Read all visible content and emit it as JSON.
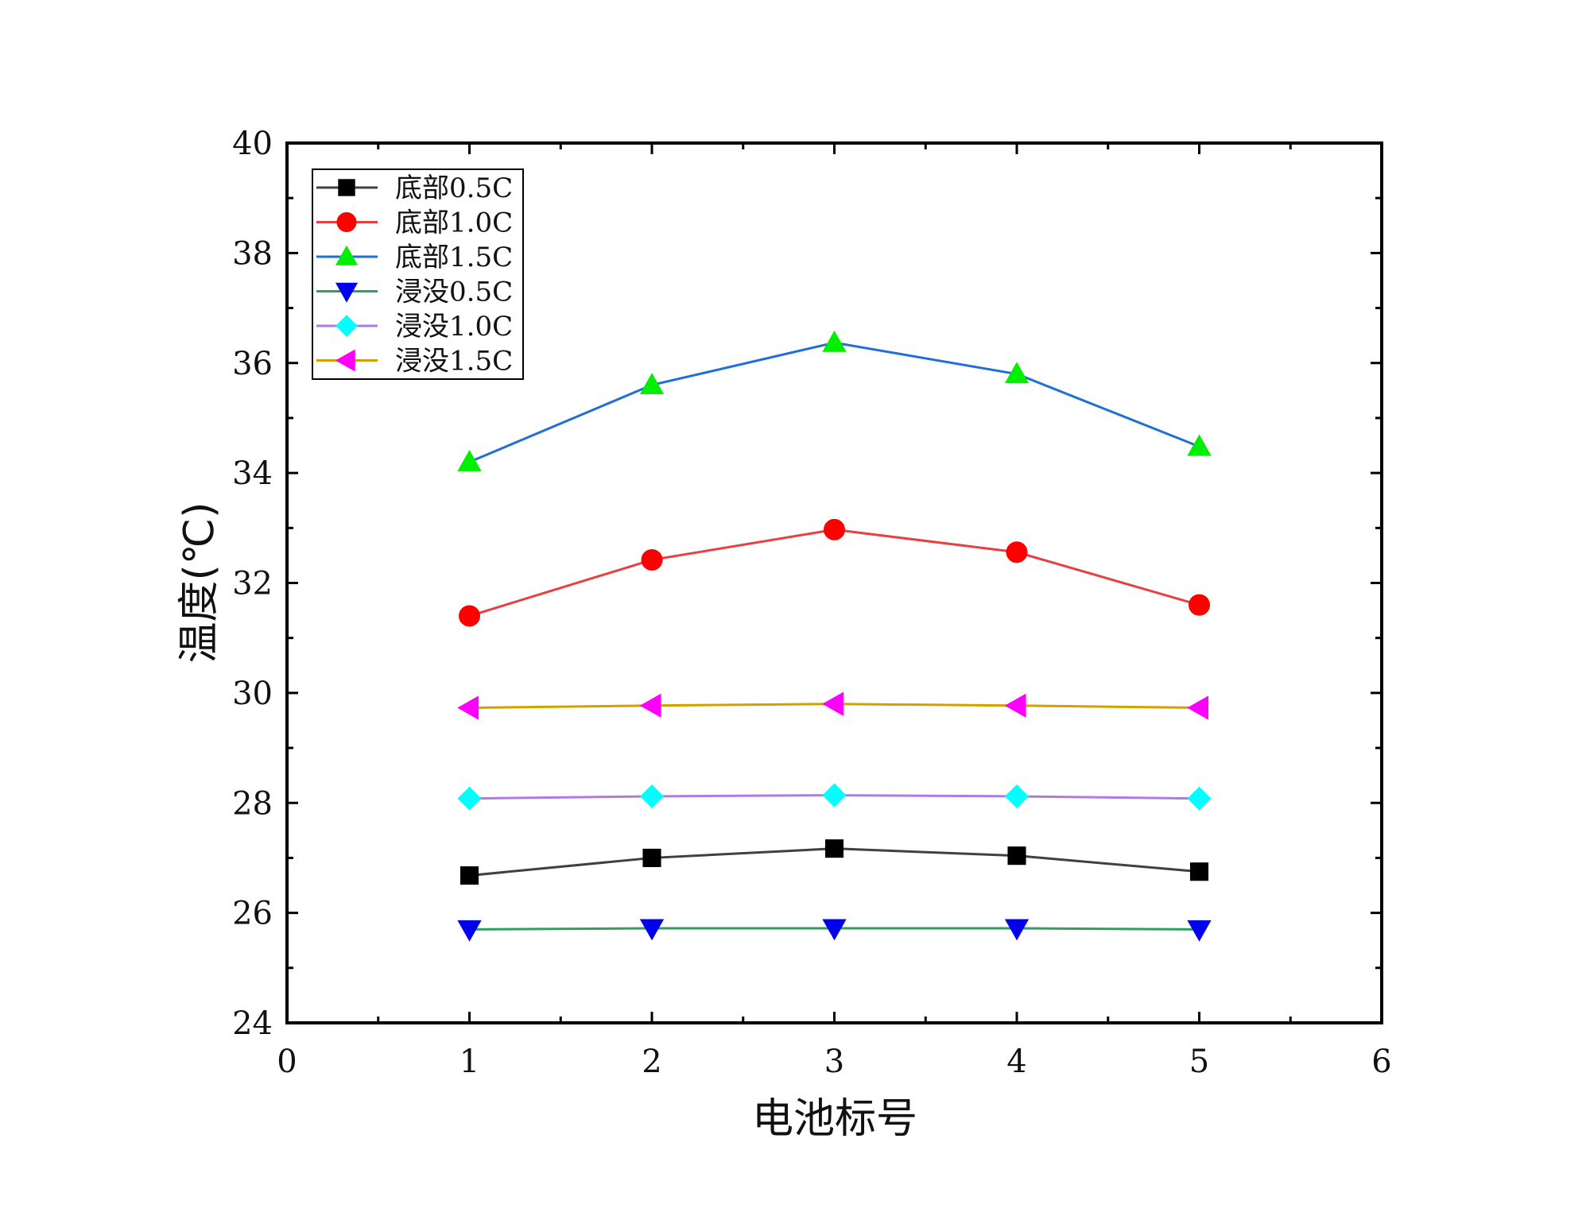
{
  "chart_data": {
    "type": "line",
    "title": "",
    "xlabel": "电池标号",
    "ylabel": "温度(℃)",
    "xlim": [
      0,
      6
    ],
    "ylim": [
      24,
      40
    ],
    "xticks": [
      0,
      1,
      2,
      3,
      4,
      5,
      6
    ],
    "yticks": [
      24,
      26,
      28,
      30,
      32,
      34,
      36,
      38,
      40
    ],
    "grid": false,
    "legend_position": "top-left",
    "x": [
      1,
      2,
      3,
      4,
      5
    ],
    "series": [
      {
        "name": "底部0.5C",
        "values": [
          26.68,
          27.0,
          27.17,
          27.04,
          26.75
        ],
        "line_color": "#404040",
        "marker_color": "#000000",
        "marker": "square"
      },
      {
        "name": "底部1.0C",
        "values": [
          31.4,
          32.42,
          32.97,
          32.56,
          31.6
        ],
        "line_color": "#e84040",
        "marker_color": "#ff0000",
        "marker": "circle"
      },
      {
        "name": "底部1.5C",
        "values": [
          34.2,
          35.6,
          36.37,
          35.8,
          34.48
        ],
        "line_color": "#1f6fd6",
        "marker_color": "#00ee00",
        "marker": "triangle-up"
      },
      {
        "name": "浸没0.5C",
        "values": [
          25.7,
          25.72,
          25.72,
          25.72,
          25.7
        ],
        "line_color": "#2ea060",
        "marker_color": "#0000ee",
        "marker": "triangle-down"
      },
      {
        "name": "浸没1.0C",
        "values": [
          28.08,
          28.12,
          28.14,
          28.12,
          28.08
        ],
        "line_color": "#b07be0",
        "marker_color": "#00ffff",
        "marker": "diamond"
      },
      {
        "name": "浸没1.5C",
        "values": [
          29.73,
          29.77,
          29.8,
          29.77,
          29.73
        ],
        "line_color": "#d4a000",
        "marker_color": "#ff00ff",
        "marker": "triangle-left"
      }
    ]
  }
}
